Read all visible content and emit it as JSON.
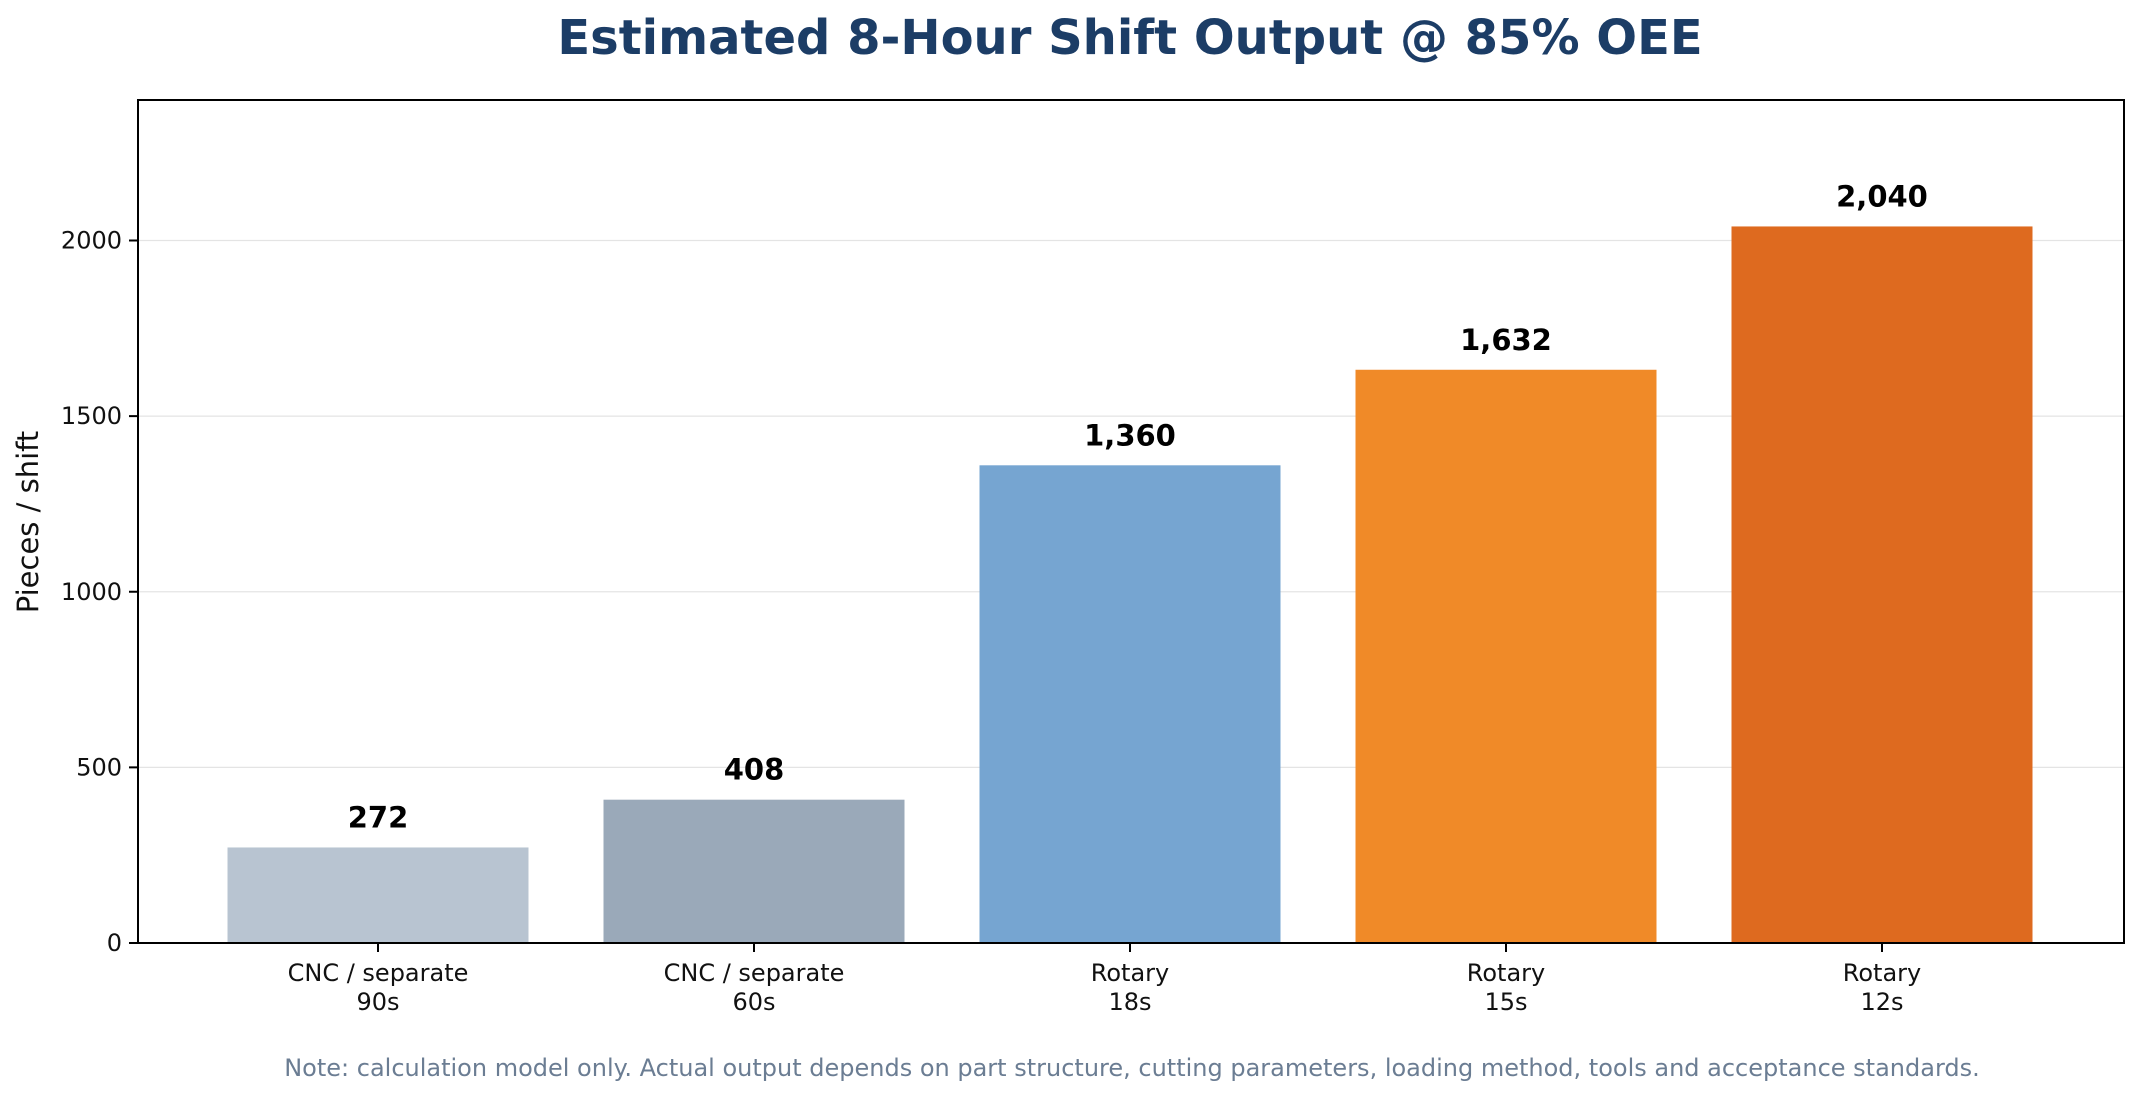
{
  "chart_data": {
    "type": "bar",
    "title": "Estimated 8-Hour Shift Output @ 85% OEE",
    "xlabel": "",
    "ylabel": "Pieces / shift",
    "ylim": [
      0,
      2400
    ],
    "yticks": [
      0,
      500,
      1000,
      1500,
      2000
    ],
    "grid": true,
    "categories": [
      [
        "CNC / separate",
        "90s"
      ],
      [
        "CNC / separate",
        "60s"
      ],
      [
        "Rotary",
        "18s"
      ],
      [
        "Rotary",
        "15s"
      ],
      [
        "Rotary",
        "12s"
      ]
    ],
    "values": [
      272,
      408,
      1360,
      1632,
      2040
    ],
    "value_labels": [
      "272",
      "408",
      "1,360",
      "1,632",
      "2,040"
    ],
    "colors": [
      "#b8c4d1",
      "#9aa9b9",
      "#76a5d1",
      "#f08a28",
      "#de6a1f"
    ]
  },
  "note": "Note: calculation model only. Actual output depends on part structure, cutting parameters, loading method, tools and acceptance standards."
}
